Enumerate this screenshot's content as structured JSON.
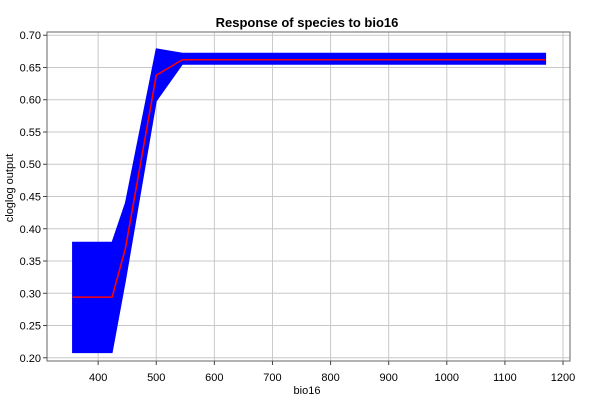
{
  "chart_data": {
    "type": "line",
    "title": "Response of species to bio16",
    "xlabel": "bio16",
    "ylabel": "cloglog output",
    "xlim": [
      312,
      1212
    ],
    "ylim": [
      0.195,
      0.705
    ],
    "xticks": [
      400,
      500,
      600,
      700,
      800,
      900,
      1000,
      1100,
      1200
    ],
    "yticks": [
      0.2,
      0.25,
      0.3,
      0.35,
      0.4,
      0.45,
      0.5,
      0.55,
      0.6,
      0.65,
      0.7
    ],
    "xtick_labels": [
      "400",
      "500",
      "600",
      "700",
      "800",
      "900",
      "1000",
      "1100",
      "1200"
    ],
    "ytick_labels": [
      "0.20",
      "0.25",
      "0.30",
      "0.35",
      "0.40",
      "0.45",
      "0.50",
      "0.55",
      "0.60",
      "0.65",
      "0.70"
    ],
    "grid": true,
    "series": [
      {
        "role": "mean",
        "color": "#ff0000",
        "x": [
          356,
          424,
          447,
          500,
          545,
          1170
        ],
        "y": [
          0.294,
          0.294,
          0.37,
          0.638,
          0.662,
          0.662
        ]
      }
    ],
    "band": {
      "color": "#0000ff",
      "x": [
        356,
        424,
        447,
        500,
        545,
        1170
      ],
      "upper": [
        0.379,
        0.379,
        0.44,
        0.679,
        0.672,
        0.672
      ],
      "lower": [
        0.208,
        0.208,
        0.32,
        0.598,
        0.655,
        0.655
      ]
    }
  }
}
